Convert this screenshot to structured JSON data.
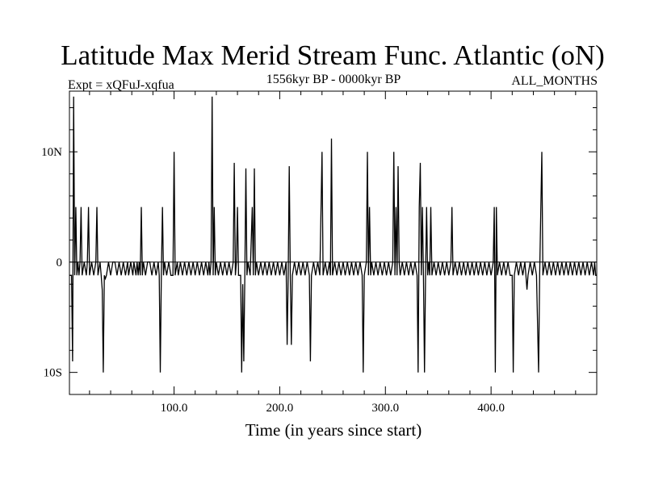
{
  "chart_data": {
    "type": "line",
    "title": "Latitude Max Merid Stream Func. Atlantic (oN)",
    "subtitle_left": "Expt = xQFuJ-xqfua",
    "subtitle_center": "1556kyr BP - 0000kyr BP",
    "subtitle_right": "ALL_MONTHS",
    "xlabel": "Time (in years since start)",
    "ylabel": "",
    "xlim": [
      1,
      500
    ],
    "ylim": [
      -12,
      15.5
    ],
    "x_ticks": [
      {
        "value": 100,
        "label": "100.0"
      },
      {
        "value": 200,
        "label": "200.0"
      },
      {
        "value": 300,
        "label": "300.0"
      },
      {
        "value": 400,
        "label": "400.0"
      }
    ],
    "y_ticks": [
      {
        "value": 10,
        "label": "10N"
      },
      {
        "value": 0,
        "label": "0"
      },
      {
        "value": -10,
        "label": "10S"
      }
    ],
    "grid": false,
    "baseline": 0,
    "series": [
      {
        "color": "#000000",
        "points": [
          [
            1,
            -1.2
          ],
          [
            3,
            -1.2
          ],
          [
            4,
            -9
          ],
          [
            5,
            15
          ],
          [
            6,
            -1.2
          ],
          [
            7,
            5
          ],
          [
            8,
            -1.2
          ],
          [
            9,
            0
          ],
          [
            10,
            -1.2
          ],
          [
            11,
            0
          ],
          [
            12,
            5
          ],
          [
            13,
            -1.2
          ],
          [
            15,
            0
          ],
          [
            17,
            -1.2
          ],
          [
            18,
            0
          ],
          [
            19,
            5
          ],
          [
            20,
            -1.2
          ],
          [
            22,
            0
          ],
          [
            24,
            -1.2
          ],
          [
            26,
            0
          ],
          [
            27,
            5
          ],
          [
            28,
            -1.2
          ],
          [
            30,
            0
          ],
          [
            31,
            -1.2
          ],
          [
            32,
            -2.5
          ],
          [
            33,
            -10
          ],
          [
            34,
            -1.2
          ],
          [
            35,
            -1.5
          ],
          [
            36,
            -1.2
          ],
          [
            38,
            0
          ],
          [
            40,
            -1.2
          ],
          [
            42,
            0
          ],
          [
            44,
            0
          ],
          [
            46,
            -1.2
          ],
          [
            48,
            0
          ],
          [
            50,
            -1.2
          ],
          [
            52,
            0
          ],
          [
            54,
            -1.2
          ],
          [
            56,
            0
          ],
          [
            57,
            -1.2
          ],
          [
            59,
            0
          ],
          [
            61,
            -1.2
          ],
          [
            62,
            0
          ],
          [
            64,
            -1.2
          ],
          [
            65,
            0
          ],
          [
            66,
            -1.2
          ],
          [
            67,
            0
          ],
          [
            68,
            -1.2
          ],
          [
            69,
            5
          ],
          [
            70,
            -1.2
          ],
          [
            71,
            0
          ],
          [
            73,
            -1.2
          ],
          [
            75,
            0
          ],
          [
            77,
            0
          ],
          [
            79,
            -1.2
          ],
          [
            81,
            0
          ],
          [
            83,
            -1.2
          ],
          [
            85,
            0
          ],
          [
            86,
            -1.2
          ],
          [
            87,
            -10
          ],
          [
            88,
            -1.2
          ],
          [
            89,
            5
          ],
          [
            90,
            -1.2
          ],
          [
            91,
            0
          ],
          [
            93,
            -1.2
          ],
          [
            95,
            0
          ],
          [
            97,
            -1.2
          ],
          [
            99,
            -1.2
          ],
          [
            100,
            10
          ],
          [
            101,
            -1.2
          ],
          [
            103,
            0
          ],
          [
            104,
            -1.2
          ],
          [
            106,
            0
          ],
          [
            108,
            -1.2
          ],
          [
            110,
            0
          ],
          [
            112,
            -1.2
          ],
          [
            114,
            0
          ],
          [
            116,
            -1.2
          ],
          [
            118,
            0
          ],
          [
            120,
            -1.2
          ],
          [
            122,
            0
          ],
          [
            124,
            -1.2
          ],
          [
            126,
            0
          ],
          [
            128,
            -1.2
          ],
          [
            130,
            0
          ],
          [
            132,
            -1.2
          ],
          [
            133,
            0
          ],
          [
            134,
            -1.2
          ],
          [
            135,
            0
          ],
          [
            136,
            15
          ],
          [
            137,
            -1.2
          ],
          [
            138,
            5
          ],
          [
            139,
            -1.2
          ],
          [
            140,
            0
          ],
          [
            142,
            -1.2
          ],
          [
            144,
            0
          ],
          [
            146,
            -1.2
          ],
          [
            148,
            0
          ],
          [
            150,
            -1.2
          ],
          [
            152,
            0
          ],
          [
            154,
            -1.2
          ],
          [
            156,
            0
          ],
          [
            157,
            9
          ],
          [
            158,
            -1.2
          ],
          [
            159,
            0
          ],
          [
            160,
            5
          ],
          [
            161,
            -1.2
          ],
          [
            163,
            -1.2
          ],
          [
            164,
            -10
          ],
          [
            165,
            -2
          ],
          [
            166,
            -9
          ],
          [
            167,
            -1.2
          ],
          [
            168,
            8.5
          ],
          [
            169,
            -1.2
          ],
          [
            170,
            0
          ],
          [
            172,
            -1.2
          ],
          [
            174,
            5
          ],
          [
            175,
            -1.2
          ],
          [
            176,
            8.5
          ],
          [
            177,
            -1.2
          ],
          [
            178,
            0
          ],
          [
            180,
            -1.2
          ],
          [
            182,
            0
          ],
          [
            184,
            -1.2
          ],
          [
            186,
            0
          ],
          [
            188,
            -1.2
          ],
          [
            190,
            0
          ],
          [
            192,
            -1.2
          ],
          [
            194,
            0
          ],
          [
            196,
            -1.2
          ],
          [
            198,
            0
          ],
          [
            200,
            -1.2
          ],
          [
            202,
            0
          ],
          [
            204,
            -1.2
          ],
          [
            206,
            0
          ],
          [
            207,
            -7.5
          ],
          [
            208,
            -1.2
          ],
          [
            209,
            8.7
          ],
          [
            210,
            -1.2
          ],
          [
            211,
            -7.5
          ],
          [
            212,
            -1.2
          ],
          [
            214,
            0
          ],
          [
            216,
            -1.2
          ],
          [
            218,
            0
          ],
          [
            220,
            -1.2
          ],
          [
            222,
            0
          ],
          [
            224,
            -1.2
          ],
          [
            226,
            0
          ],
          [
            228,
            -1.2
          ],
          [
            229,
            -9
          ],
          [
            230,
            -1.2
          ],
          [
            232,
            0
          ],
          [
            234,
            -1.2
          ],
          [
            236,
            0
          ],
          [
            238,
            -1.2
          ],
          [
            240,
            10
          ],
          [
            241,
            -1.2
          ],
          [
            243,
            0
          ],
          [
            245,
            -1.2
          ],
          [
            247,
            0
          ],
          [
            248,
            -1.2
          ],
          [
            249,
            11.2
          ],
          [
            250,
            -1.2
          ],
          [
            252,
            0
          ],
          [
            254,
            -1.2
          ],
          [
            256,
            0
          ],
          [
            258,
            -1.2
          ],
          [
            260,
            0
          ],
          [
            262,
            -1.2
          ],
          [
            264,
            0
          ],
          [
            266,
            -1.2
          ],
          [
            268,
            0
          ],
          [
            270,
            -1.2
          ],
          [
            272,
            0
          ],
          [
            274,
            -1.2
          ],
          [
            276,
            0
          ],
          [
            278,
            -1.2
          ],
          [
            279,
            -10
          ],
          [
            280,
            -1.2
          ],
          [
            282,
            0
          ],
          [
            283,
            10
          ],
          [
            284,
            -1.2
          ],
          [
            285,
            5
          ],
          [
            286,
            -1.2
          ],
          [
            287,
            0
          ],
          [
            289,
            -1.2
          ],
          [
            291,
            0
          ],
          [
            293,
            -1.2
          ],
          [
            295,
            0
          ],
          [
            297,
            -1.2
          ],
          [
            299,
            0
          ],
          [
            301,
            -1.2
          ],
          [
            303,
            0
          ],
          [
            305,
            -1.2
          ],
          [
            307,
            0
          ],
          [
            308,
            10
          ],
          [
            309,
            -1.2
          ],
          [
            310,
            5
          ],
          [
            311,
            -1.2
          ],
          [
            312,
            8.7
          ],
          [
            313,
            0
          ],
          [
            314,
            -1.2
          ],
          [
            316,
            0
          ],
          [
            318,
            -1.2
          ],
          [
            320,
            0
          ],
          [
            322,
            -1.2
          ],
          [
            324,
            0
          ],
          [
            326,
            -1.2
          ],
          [
            328,
            0
          ],
          [
            330,
            -1.2
          ],
          [
            331,
            -10
          ],
          [
            332,
            5
          ],
          [
            333,
            9
          ],
          [
            334,
            -1.2
          ],
          [
            335,
            5
          ],
          [
            336,
            -1.2
          ],
          [
            337,
            -10
          ],
          [
            338,
            -1.2
          ],
          [
            339,
            5
          ],
          [
            340,
            -1.2
          ],
          [
            341,
            0
          ],
          [
            342,
            -1.2
          ],
          [
            343,
            5
          ],
          [
            344,
            -1.2
          ],
          [
            346,
            0
          ],
          [
            348,
            -1.2
          ],
          [
            350,
            0
          ],
          [
            352,
            -1.2
          ],
          [
            354,
            0
          ],
          [
            356,
            -1.2
          ],
          [
            358,
            0
          ],
          [
            360,
            -1.2
          ],
          [
            362,
            0
          ],
          [
            363,
            5
          ],
          [
            364,
            -1.2
          ],
          [
            366,
            0
          ],
          [
            368,
            -1.2
          ],
          [
            370,
            0
          ],
          [
            372,
            -1.2
          ],
          [
            374,
            0
          ],
          [
            376,
            -1.2
          ],
          [
            378,
            0
          ],
          [
            380,
            -1.2
          ],
          [
            382,
            0
          ],
          [
            384,
            -1.2
          ],
          [
            386,
            0
          ],
          [
            388,
            -1.2
          ],
          [
            390,
            0
          ],
          [
            392,
            -1.2
          ],
          [
            394,
            0
          ],
          [
            396,
            -1.2
          ],
          [
            398,
            0
          ],
          [
            400,
            -1.2
          ],
          [
            402,
            0
          ],
          [
            403,
            5
          ],
          [
            404,
            -10
          ],
          [
            405,
            5
          ],
          [
            406,
            -1.2
          ],
          [
            408,
            0
          ],
          [
            410,
            -1.2
          ],
          [
            412,
            0
          ],
          [
            414,
            -1.2
          ],
          [
            416,
            0
          ],
          [
            418,
            -1.2
          ],
          [
            420,
            -1.2
          ],
          [
            421,
            -10
          ],
          [
            422,
            -1.2
          ],
          [
            424,
            0
          ],
          [
            426,
            -1.2
          ],
          [
            428,
            0
          ],
          [
            430,
            -1.2
          ],
          [
            432,
            0
          ],
          [
            433,
            -1.2
          ],
          [
            434,
            -2.5
          ],
          [
            435,
            -1.2
          ],
          [
            437,
            0
          ],
          [
            439,
            -1.2
          ],
          [
            441,
            0
          ],
          [
            443,
            -1.2
          ],
          [
            445,
            -10
          ],
          [
            446,
            -1.2
          ],
          [
            448,
            10
          ],
          [
            449,
            -1.2
          ],
          [
            451,
            0
          ],
          [
            453,
            -1.2
          ],
          [
            455,
            0
          ],
          [
            457,
            -1.2
          ],
          [
            459,
            0
          ],
          [
            461,
            -1.2
          ],
          [
            463,
            0
          ],
          [
            465,
            -1.2
          ],
          [
            467,
            0
          ],
          [
            469,
            -1.2
          ],
          [
            471,
            0
          ],
          [
            473,
            -1.2
          ],
          [
            475,
            0
          ],
          [
            477,
            -1.2
          ],
          [
            479,
            0
          ],
          [
            481,
            -1.2
          ],
          [
            483,
            0
          ],
          [
            485,
            -1.2
          ],
          [
            487,
            0
          ],
          [
            489,
            -1.2
          ],
          [
            491,
            0
          ],
          [
            493,
            -1.2
          ],
          [
            495,
            0
          ],
          [
            497,
            -1.2
          ],
          [
            498,
            0
          ],
          [
            499,
            -1.2
          ],
          [
            500,
            -1.2
          ]
        ]
      }
    ]
  }
}
